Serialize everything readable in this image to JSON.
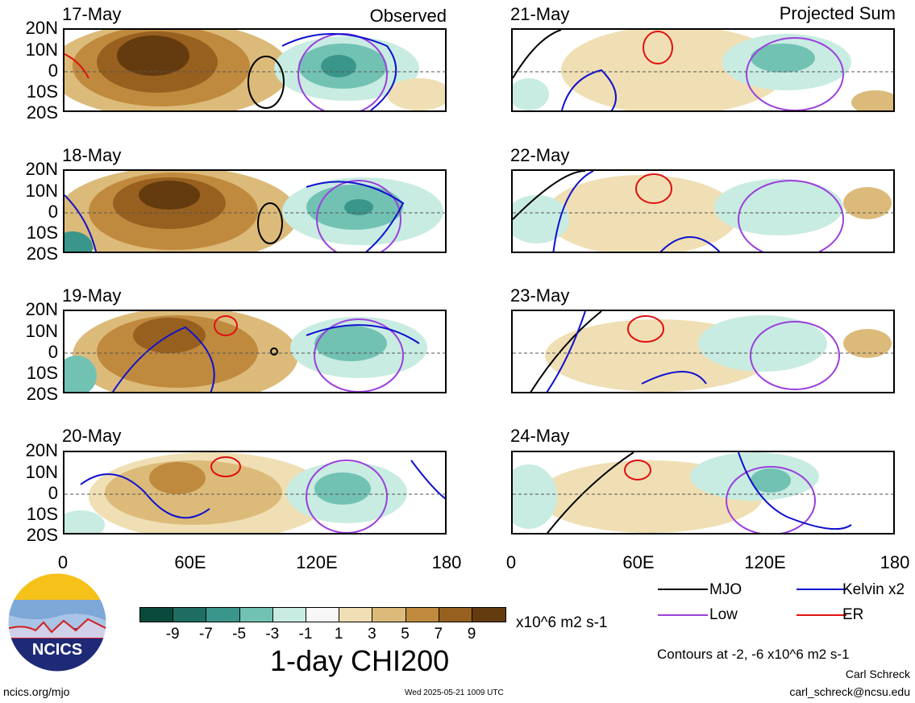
{
  "observed_label": "Observed",
  "projected_label": "Projected Sum",
  "panels": [
    {
      "date": "17-May"
    },
    {
      "date": "18-May"
    },
    {
      "date": "19-May"
    },
    {
      "date": "20-May"
    },
    {
      "date": "21-May"
    },
    {
      "date": "22-May"
    },
    {
      "date": "23-May"
    },
    {
      "date": "24-May"
    }
  ],
  "lat_labels": [
    "20N",
    "10N",
    "0",
    "10S",
    "20S"
  ],
  "lon_labels": [
    "0",
    "60E",
    "120E",
    "180"
  ],
  "colorbar": {
    "colors": [
      "#0a4a3c",
      "#1f6e62",
      "#3a968a",
      "#72c2b4",
      "#c8ece2",
      "#f7f7f7",
      "#f0dfb4",
      "#dcbb7a",
      "#c08a3e",
      "#97601f",
      "#643b0f"
    ],
    "ticks": [
      "-9",
      "-7",
      "-5",
      "-3",
      "-1",
      "1",
      "3",
      "5",
      "7",
      "9"
    ],
    "units": "x10^6 m2 s-1",
    "title": "1-day CHI200"
  },
  "legend": {
    "mjo": {
      "label": "MJO",
      "color": "#000000"
    },
    "kelvin": {
      "label": "Kelvin x2",
      "color": "#1010d0"
    },
    "low": {
      "label": "Low",
      "color": "#9b3fdc"
    },
    "er": {
      "label": "ER",
      "color": "#e01010"
    }
  },
  "contours_note": "Contours at -2, -6 x10^6 m2 s-1",
  "author": "Carl Schreck",
  "email": "carl_schreck@ncsu.edu",
  "site": "ncics.org/mjo",
  "timestamp": "Wed 2025-05-21 1009 UTC",
  "logo_text": "NCICS"
}
